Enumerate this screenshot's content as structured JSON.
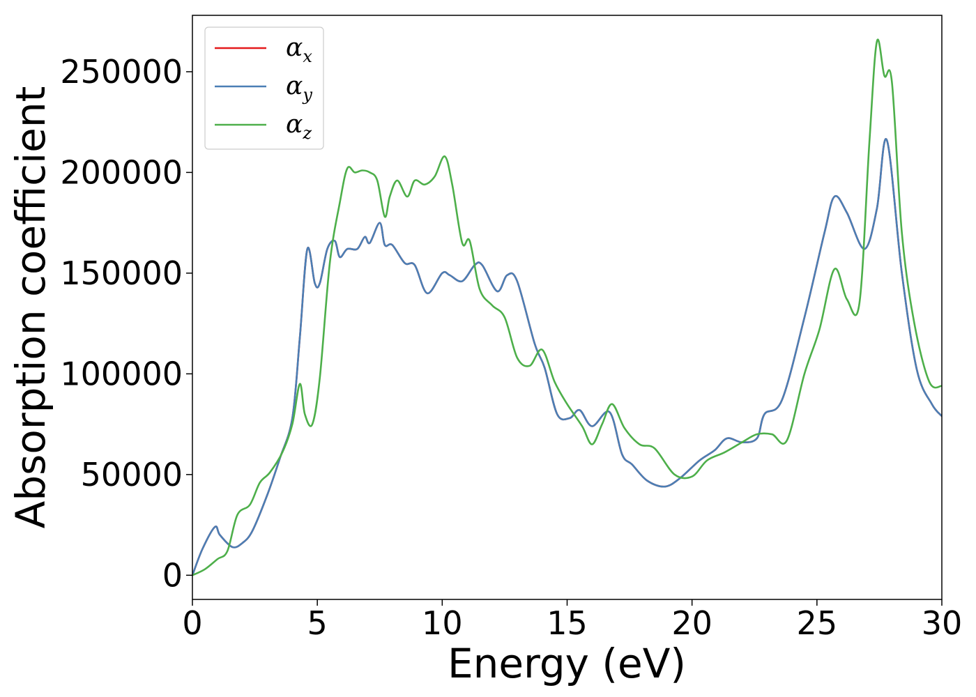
{
  "chart_data": {
    "type": "line",
    "xlabel": "Energy (eV)",
    "ylabel": "Absorption coefficient",
    "xlim": [
      0,
      30
    ],
    "ylim": [
      -12000,
      278000
    ],
    "x_ticks": [
      0,
      5,
      10,
      15,
      20,
      25,
      30
    ],
    "x_tick_labels": [
      "0",
      "5",
      "10",
      "15",
      "20",
      "25",
      "30"
    ],
    "y_ticks": [
      0,
      50000,
      100000,
      150000,
      200000,
      250000
    ],
    "y_tick_labels": [
      "0",
      "50000",
      "100000",
      "150000",
      "200000",
      "250000"
    ],
    "grid": false,
    "legend_position": "top-left",
    "series": [
      {
        "name": "α_x",
        "legend_symbol": "α",
        "legend_subscript": "x",
        "color": "#e41a1c",
        "x": [
          0,
          0.4,
          0.9,
          1.1,
          1.6,
          2.0,
          2.4,
          3.0,
          3.5,
          4.0,
          4.3,
          4.6,
          4.9,
          5.1,
          5.4,
          5.7,
          5.9,
          6.2,
          6.6,
          6.9,
          7.1,
          7.5,
          7.7,
          8.0,
          8.5,
          8.9,
          9.4,
          10.0,
          10.3,
          10.8,
          11.3,
          11.6,
          12.2,
          12.6,
          13.0,
          13.7,
          14.1,
          14.6,
          15.1,
          15.5,
          16.0,
          16.7,
          17.2,
          17.6,
          18.2,
          18.9,
          19.5,
          20.3,
          20.9,
          21.4,
          22.0,
          22.6,
          22.9,
          23.6,
          24.5,
          25.3,
          25.7,
          26.2,
          26.9,
          27.4,
          27.8,
          28.4,
          29.0,
          29.6,
          30.0
        ],
        "values": [
          0,
          13000,
          24000,
          20000,
          14000,
          16000,
          22000,
          40000,
          58000,
          78000,
          118000,
          162000,
          145000,
          145000,
          162000,
          166000,
          158000,
          162000,
          162000,
          168000,
          165000,
          175000,
          164000,
          164000,
          155000,
          154000,
          140000,
          150000,
          149000,
          146000,
          154000,
          154000,
          141000,
          149000,
          146000,
          115000,
          103000,
          80000,
          78000,
          82000,
          74000,
          81000,
          60000,
          55000,
          47000,
          44000,
          48000,
          57000,
          62000,
          68000,
          66000,
          68000,
          80000,
          87000,
          128000,
          170000,
          188000,
          180000,
          162000,
          182000,
          216000,
          150000,
          102000,
          85000,
          79000
        ]
      },
      {
        "name": "α_y",
        "legend_symbol": "α",
        "legend_subscript": "y",
        "color": "#4a7fb5",
        "x": [
          0,
          0.4,
          0.9,
          1.1,
          1.6,
          2.0,
          2.4,
          3.0,
          3.5,
          4.0,
          4.3,
          4.6,
          4.9,
          5.1,
          5.4,
          5.7,
          5.9,
          6.2,
          6.6,
          6.9,
          7.1,
          7.5,
          7.7,
          8.0,
          8.5,
          8.9,
          9.4,
          10.0,
          10.3,
          10.8,
          11.3,
          11.6,
          12.2,
          12.6,
          13.0,
          13.7,
          14.1,
          14.6,
          15.1,
          15.5,
          16.0,
          16.7,
          17.2,
          17.6,
          18.2,
          18.9,
          19.5,
          20.3,
          20.9,
          21.4,
          22.0,
          22.6,
          22.9,
          23.6,
          24.5,
          25.3,
          25.7,
          26.2,
          26.9,
          27.4,
          27.8,
          28.4,
          29.0,
          29.6,
          30.0
        ],
        "values": [
          0,
          13000,
          24000,
          20000,
          14000,
          16000,
          22000,
          40000,
          58000,
          78000,
          118000,
          162000,
          145000,
          145000,
          162000,
          166000,
          158000,
          162000,
          162000,
          168000,
          165000,
          175000,
          164000,
          164000,
          155000,
          154000,
          140000,
          150000,
          149000,
          146000,
          154000,
          154000,
          141000,
          149000,
          146000,
          115000,
          103000,
          80000,
          78000,
          82000,
          74000,
          81000,
          60000,
          55000,
          47000,
          44000,
          48000,
          57000,
          62000,
          68000,
          66000,
          68000,
          80000,
          87000,
          128000,
          170000,
          188000,
          180000,
          162000,
          182000,
          216000,
          150000,
          102000,
          85000,
          79000
        ]
      },
      {
        "name": "α_z",
        "legend_symbol": "α",
        "legend_subscript": "z",
        "color": "#4daf4a",
        "x": [
          0,
          0.5,
          1.0,
          1.4,
          1.8,
          2.3,
          2.7,
          3.1,
          3.6,
          4.0,
          4.3,
          4.5,
          4.8,
          5.1,
          5.5,
          5.9,
          6.2,
          6.5,
          6.8,
          7.1,
          7.4,
          7.7,
          7.9,
          8.2,
          8.6,
          8.9,
          9.3,
          9.7,
          10.1,
          10.4,
          10.8,
          11.1,
          11.5,
          12.0,
          12.5,
          13.0,
          13.5,
          14.0,
          14.5,
          15.0,
          15.6,
          16.0,
          16.4,
          16.8,
          17.3,
          17.9,
          18.5,
          19.3,
          20.0,
          20.6,
          21.3,
          22.0,
          22.6,
          23.2,
          23.8,
          24.5,
          25.1,
          25.7,
          26.2,
          26.7,
          27.1,
          27.4,
          27.7,
          28.0,
          28.4,
          28.9,
          29.5,
          30.0
        ],
        "values": [
          0,
          3000,
          8000,
          12000,
          30000,
          35000,
          46000,
          51000,
          61000,
          75000,
          95000,
          80000,
          75000,
          98000,
          155000,
          185000,
          202000,
          200000,
          201000,
          200000,
          196000,
          178000,
          188000,
          196000,
          188000,
          196000,
          194000,
          198000,
          208000,
          194000,
          165000,
          166000,
          142000,
          134000,
          128000,
          108000,
          104000,
          112000,
          96000,
          85000,
          74000,
          65000,
          75000,
          85000,
          73000,
          65000,
          63000,
          50000,
          49000,
          57000,
          61000,
          66000,
          70000,
          70000,
          67000,
          100000,
          122000,
          152000,
          137000,
          135000,
          215000,
          265000,
          248000,
          245000,
          170000,
          125000,
          96000,
          94000
        ]
      }
    ]
  }
}
